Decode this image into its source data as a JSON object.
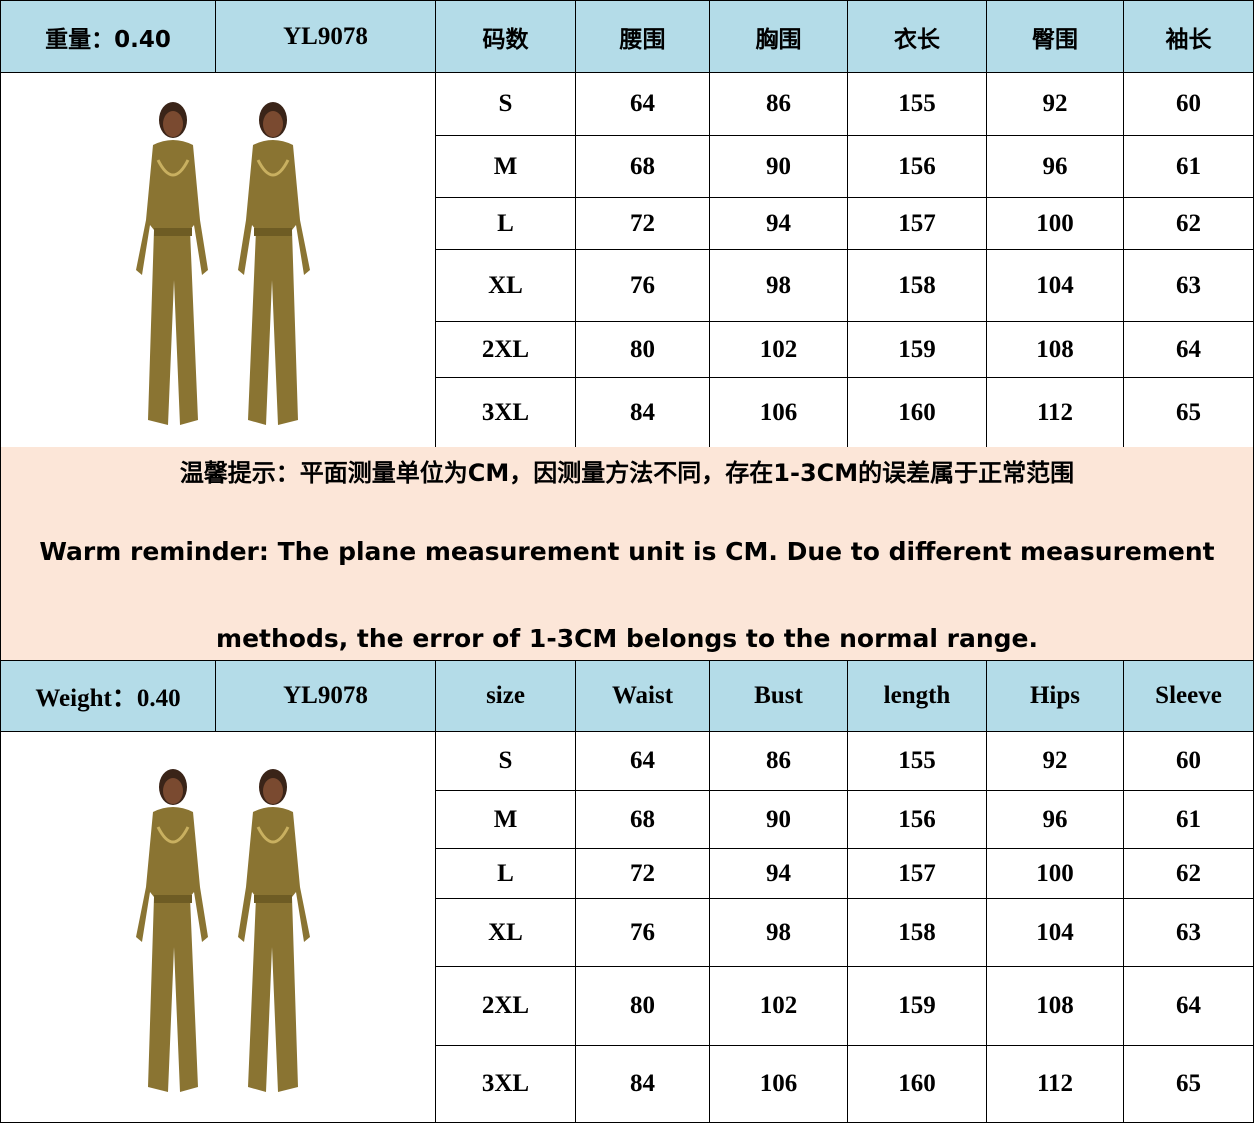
{
  "top_table": {
    "header": [
      "重量：0.40",
      "YL9078",
      "码数",
      "腰围",
      "胸围",
      "衣长",
      "臀围",
      "袖长"
    ],
    "rows": [
      [
        "S",
        "64",
        "86",
        "155",
        "92",
        "60"
      ],
      [
        "M",
        "68",
        "90",
        "156",
        "96",
        "61"
      ],
      [
        "L",
        "72",
        "94",
        "157",
        "100",
        "62"
      ],
      [
        "XL",
        "76",
        "98",
        "158",
        "104",
        "63"
      ],
      [
        "2XL",
        "80",
        "102",
        "159",
        "108",
        "64"
      ],
      [
        "3XL",
        "84",
        "106",
        "160",
        "112",
        "65"
      ]
    ]
  },
  "reminder": {
    "chinese": "温馨提示：平面测量单位为CM，因测量方法不同，存在1-3CM的误差属于正常范围",
    "english_line1": "Warm reminder: The plane measurement unit is CM. Due to different measurement",
    "english_line2": "methods, the error of 1-3CM belongs to the normal range."
  },
  "bottom_table": {
    "header": [
      "Weight：0.40",
      "YL9078",
      "size",
      "Waist",
      "Bust",
      "length",
      "Hips",
      "Sleeve"
    ],
    "rows": [
      [
        "S",
        "64",
        "86",
        "155",
        "92",
        "60"
      ],
      [
        "M",
        "68",
        "90",
        "156",
        "96",
        "61"
      ],
      [
        "L",
        "72",
        "94",
        "157",
        "100",
        "62"
      ],
      [
        "XL",
        "76",
        "98",
        "158",
        "104",
        "63"
      ],
      [
        "2XL",
        "80",
        "102",
        "159",
        "108",
        "64"
      ],
      [
        "3XL",
        "84",
        "106",
        "160",
        "112",
        "65"
      ]
    ]
  },
  "colors": {
    "header_bg": "#b4dce8",
    "reminder_bg": "#fce6d8",
    "garment": "#8a7432"
  }
}
